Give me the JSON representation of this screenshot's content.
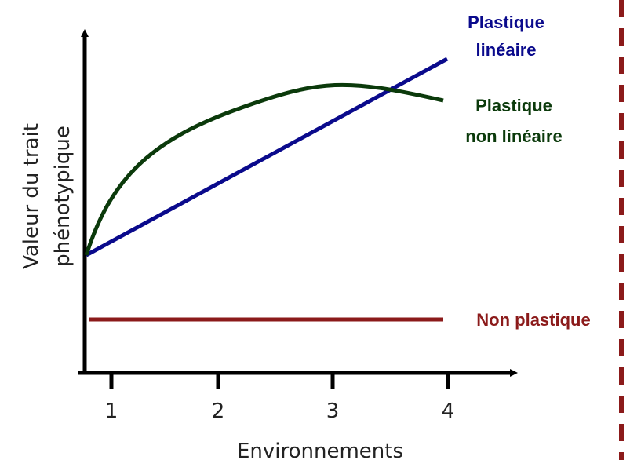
{
  "axes": {
    "y_label": [
      "Valeur du trait",
      "phénotypique"
    ],
    "x_label": "Environnements",
    "x_ticks": [
      "1",
      "2",
      "3",
      "4"
    ]
  },
  "curves": [
    {
      "label": [
        "Plastique",
        "linéaire"
      ]
    },
    {
      "label": [
        "Plastique",
        "non linéaire"
      ]
    },
    {
      "label": [
        "Non plastique"
      ]
    }
  ]
}
